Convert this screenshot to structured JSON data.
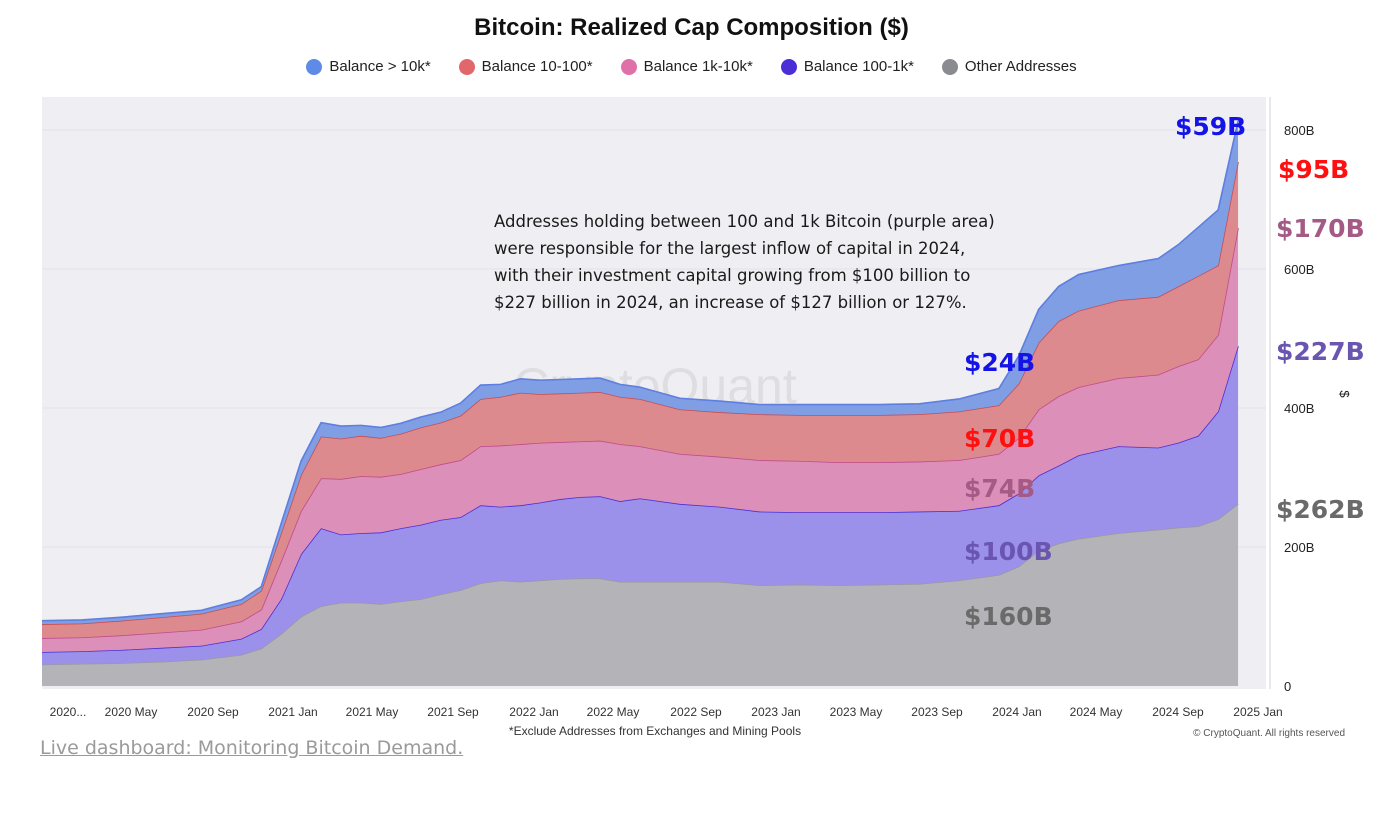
{
  "chart_data": {
    "type": "area",
    "stacked": true,
    "title": "Bitcoin: Realized Cap Composition ($)",
    "ylabel": "$",
    "ylim": [
      0,
      880
    ],
    "y_unit": "B",
    "y_ticks": [
      "0",
      "200B",
      "400B",
      "600B",
      "800B"
    ],
    "y_tick_values": [
      0,
      200,
      400,
      600,
      800
    ],
    "x_tick_labels": [
      "2020...",
      "2020 May",
      "2020 Sep",
      "2021 Jan",
      "2021 May",
      "2021 Sep",
      "2022 Jan",
      "2022 May",
      "2022 Sep",
      "2023 Jan",
      "2023 May",
      "2023 Sep",
      "2024 Jan",
      "2024 May",
      "2024 Sep",
      "2025 Jan"
    ],
    "x": [
      "2020-01",
      "2020-03",
      "2020-05",
      "2020-07",
      "2020-09",
      "2020-11",
      "2020-12",
      "2021-01",
      "2021-02",
      "2021-03",
      "2021-04",
      "2021-05",
      "2021-06",
      "2021-07",
      "2021-08",
      "2021-09",
      "2021-10",
      "2021-11",
      "2021-12",
      "2022-01",
      "2022-02",
      "2022-03",
      "2022-04",
      "2022-05",
      "2022-06",
      "2022-07",
      "2022-09",
      "2022-11",
      "2023-01",
      "2023-03",
      "2023-05",
      "2023-07",
      "2023-09",
      "2023-11",
      "2024-01",
      "2024-02",
      "2024-03",
      "2024-04",
      "2024-05",
      "2024-07",
      "2024-09",
      "2024-10",
      "2024-11",
      "2024-12",
      "2025-01"
    ],
    "series": [
      {
        "name": "Other Addresses",
        "color": "#b4b3b8",
        "values": [
          31,
          32,
          33,
          35,
          38,
          45,
          54,
          75,
          100,
          115,
          120,
          120,
          118,
          122,
          125,
          132,
          138,
          148,
          152,
          150,
          152,
          154,
          155,
          155,
          150,
          150,
          150,
          150,
          145,
          146,
          145,
          146,
          147,
          152,
          160,
          172,
          195,
          205,
          212,
          220,
          225,
          228,
          230,
          240,
          262
        ]
      },
      {
        "name": "Balance 100-1k*",
        "color": "#9b91ea",
        "values": [
          18,
          18,
          19,
          20,
          20,
          23,
          28,
          50,
          90,
          112,
          98,
          100,
          103,
          105,
          107,
          107,
          105,
          112,
          106,
          110,
          112,
          115,
          117,
          118,
          116,
          120,
          112,
          108,
          106,
          104,
          105,
          104,
          104,
          100,
          100,
          105,
          108,
          112,
          120,
          125,
          118,
          122,
          130,
          155,
          227
        ]
      },
      {
        "name": "Balance 1k-10k*",
        "color": "#db8fb9",
        "values": [
          20,
          20,
          21,
          22,
          23,
          25,
          28,
          55,
          62,
          72,
          80,
          82,
          80,
          78,
          80,
          80,
          82,
          85,
          88,
          88,
          86,
          82,
          80,
          80,
          82,
          75,
          72,
          72,
          74,
          74,
          72,
          72,
          72,
          73,
          74,
          80,
          95,
          100,
          98,
          98,
          105,
          110,
          110,
          110,
          170
        ]
      },
      {
        "name": "Balance 10-100*",
        "color": "#dd8a8e",
        "values": [
          20,
          20,
          21,
          22,
          23,
          25,
          27,
          40,
          52,
          60,
          58,
          58,
          56,
          58,
          60,
          60,
          64,
          68,
          70,
          74,
          70,
          70,
          70,
          70,
          68,
          68,
          64,
          64,
          66,
          66,
          68,
          68,
          68,
          70,
          70,
          78,
          96,
          108,
          110,
          112,
          112,
          115,
          120,
          100,
          95
        ]
      },
      {
        "name": "Balance > 10k*",
        "color": "#7f9ee4",
        "values": [
          5,
          5,
          5,
          5,
          5,
          6,
          6,
          14,
          20,
          20,
          18,
          15,
          15,
          15,
          15,
          15,
          18,
          20,
          18,
          20,
          20,
          20,
          20,
          20,
          18,
          17,
          16,
          16,
          14,
          15,
          15,
          15,
          15,
          18,
          24,
          40,
          48,
          50,
          52,
          50,
          55,
          60,
          70,
          80,
          59
        ]
      }
    ],
    "legend": [
      "Balance > 10k*",
      "Balance 10-100*",
      "Balance 1k-10k*",
      "Balance 100-1k*",
      "Other Addresses"
    ],
    "legend_colors": [
      "#5e8be8",
      "#e0676b",
      "#e070a8",
      "#4b2ed6",
      "#8a8a91"
    ],
    "legend_position": "top",
    "watermark": "CryptoQuant",
    "annotations": {
      "note": [
        "Addresses holding between 100 and 1k Bitcoin (purple area)",
        "were responsible for the largest inflow of capital in 2024,",
        "with their investment capital growing from $100 billion to",
        "$227 billion in 2024, an increase of $127 billion or 127%."
      ],
      "start_2024": [
        {
          "text": "$24B",
          "color": "#1414e6"
        },
        {
          "text": "$70B",
          "color": "#ff1010"
        },
        {
          "text": "$74B",
          "color": "#a55a86"
        },
        {
          "text": "$100B",
          "color": "#6a55b0"
        },
        {
          "text": "$160B",
          "color": "#6a6a6a"
        }
      ],
      "end_2024": [
        {
          "text": "$59B",
          "color": "#1414e6"
        },
        {
          "text": "$95B",
          "color": "#ff1010"
        },
        {
          "text": "$170B",
          "color": "#a55a86"
        },
        {
          "text": "$227B",
          "color": "#6a55b0"
        },
        {
          "text": "$262B",
          "color": "#6a6a6a"
        }
      ]
    },
    "footnote": "*Exclude Addresses from Exchanges and Mining Pools",
    "copyright": "© CryptoQuant. All rights reserved"
  },
  "link": {
    "label": "Live dashboard: Monitoring Bitcoin Demand."
  }
}
